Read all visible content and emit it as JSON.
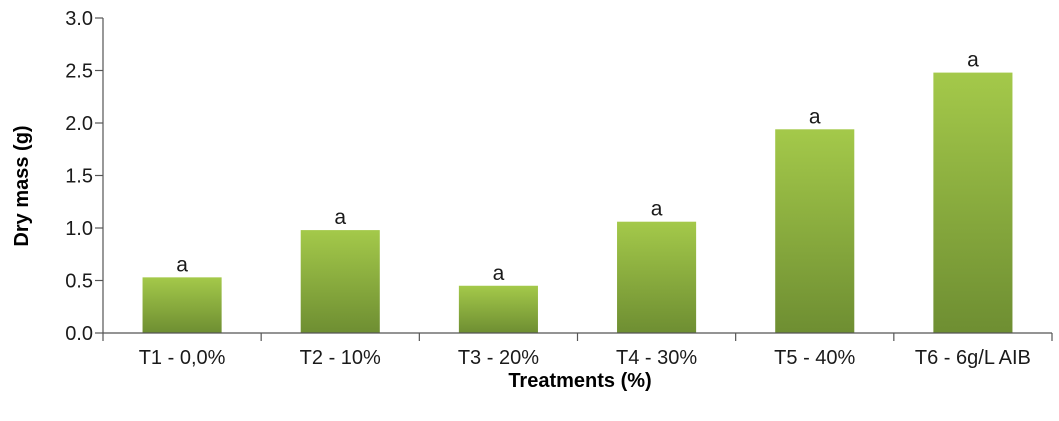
{
  "chart_data": {
    "type": "bar",
    "categories": [
      "T1 - 0,0%",
      "T2 - 10%",
      "T3 - 20%",
      "T4 - 30%",
      "T5 - 40%",
      "T6 - 6g/L AIB"
    ],
    "values": [
      0.53,
      0.98,
      0.45,
      1.06,
      1.94,
      2.48
    ],
    "data_labels": [
      "a",
      "a",
      "a",
      "a",
      "a",
      "a"
    ],
    "xlabel": "Treatments (%)",
    "ylabel": "Dry mass (g)",
    "ylim": [
      0,
      3.0
    ],
    "yticks": [
      "0.0",
      "0.5",
      "1.0",
      "1.5",
      "2.0",
      "2.5",
      "3.0"
    ],
    "grid": false,
    "colors": {
      "bar_top": "#a4c94a",
      "bar_bottom": "#6e8e32",
      "axis": "#555555"
    }
  }
}
